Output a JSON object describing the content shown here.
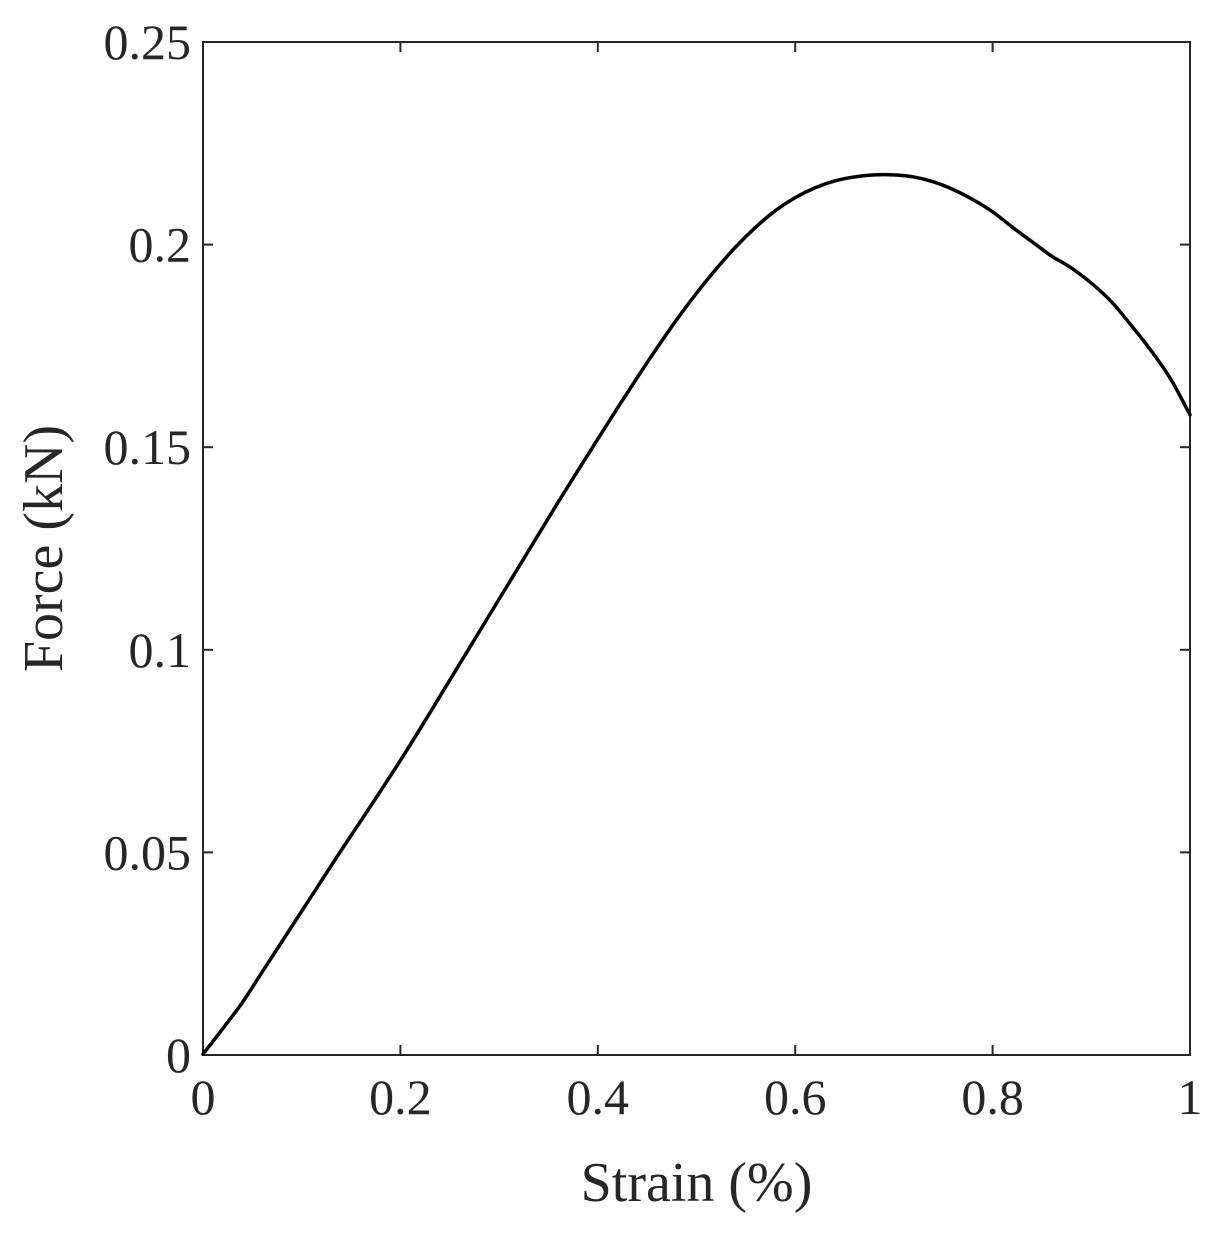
{
  "chart_data": {
    "type": "line",
    "title": "",
    "xlabel": "Strain (%)",
    "ylabel": "Force (kN)",
    "xlim": [
      0,
      1
    ],
    "ylim": [
      0,
      0.25
    ],
    "xticks": [
      0,
      0.2,
      0.4,
      0.6,
      0.8,
      1
    ],
    "xtick_labels": [
      "0",
      "0.2",
      "0.4",
      "0.6",
      "0.8",
      "1"
    ],
    "yticks": [
      0,
      0.05,
      0.1,
      0.15,
      0.2,
      0.25
    ],
    "ytick_labels": [
      "0",
      "0.05",
      "0.1",
      "0.15",
      "0.2",
      "0.25"
    ],
    "grid": false,
    "box": true,
    "line_color": "#000000",
    "series": [
      {
        "x": [
          0,
          0.02,
          0.04,
          0.06,
          0.08,
          0.1,
          0.12,
          0.14,
          0.16,
          0.18,
          0.2,
          0.22,
          0.24,
          0.26,
          0.28,
          0.3,
          0.32,
          0.34,
          0.36,
          0.38,
          0.4,
          0.42,
          0.44,
          0.46,
          0.48,
          0.5,
          0.52,
          0.54,
          0.56,
          0.58,
          0.6,
          0.62,
          0.64,
          0.66,
          0.68,
          0.7,
          0.72,
          0.74,
          0.76,
          0.78,
          0.8,
          0.82,
          0.84,
          0.86,
          0.87,
          0.88,
          0.9,
          0.92,
          0.94,
          0.96,
          0.98,
          1.0
        ],
        "y": [
          0.0002,
          0.0065,
          0.013,
          0.0205,
          0.028,
          0.0355,
          0.043,
          0.0505,
          0.0578,
          0.0652,
          0.0727,
          0.0805,
          0.0885,
          0.0965,
          0.1045,
          0.1125,
          0.1205,
          0.1285,
          0.1365,
          0.1443,
          0.152,
          0.1597,
          0.1672,
          0.1745,
          0.1815,
          0.188,
          0.194,
          0.1995,
          0.2043,
          0.2084,
          0.2116,
          0.214,
          0.2157,
          0.2167,
          0.2172,
          0.2172,
          0.2167,
          0.2155,
          0.2136,
          0.2111,
          0.2081,
          0.2043,
          0.2007,
          0.1971,
          0.1957,
          0.1942,
          0.1905,
          0.186,
          0.1802,
          0.174,
          0.167,
          0.158
        ]
      }
    ]
  }
}
